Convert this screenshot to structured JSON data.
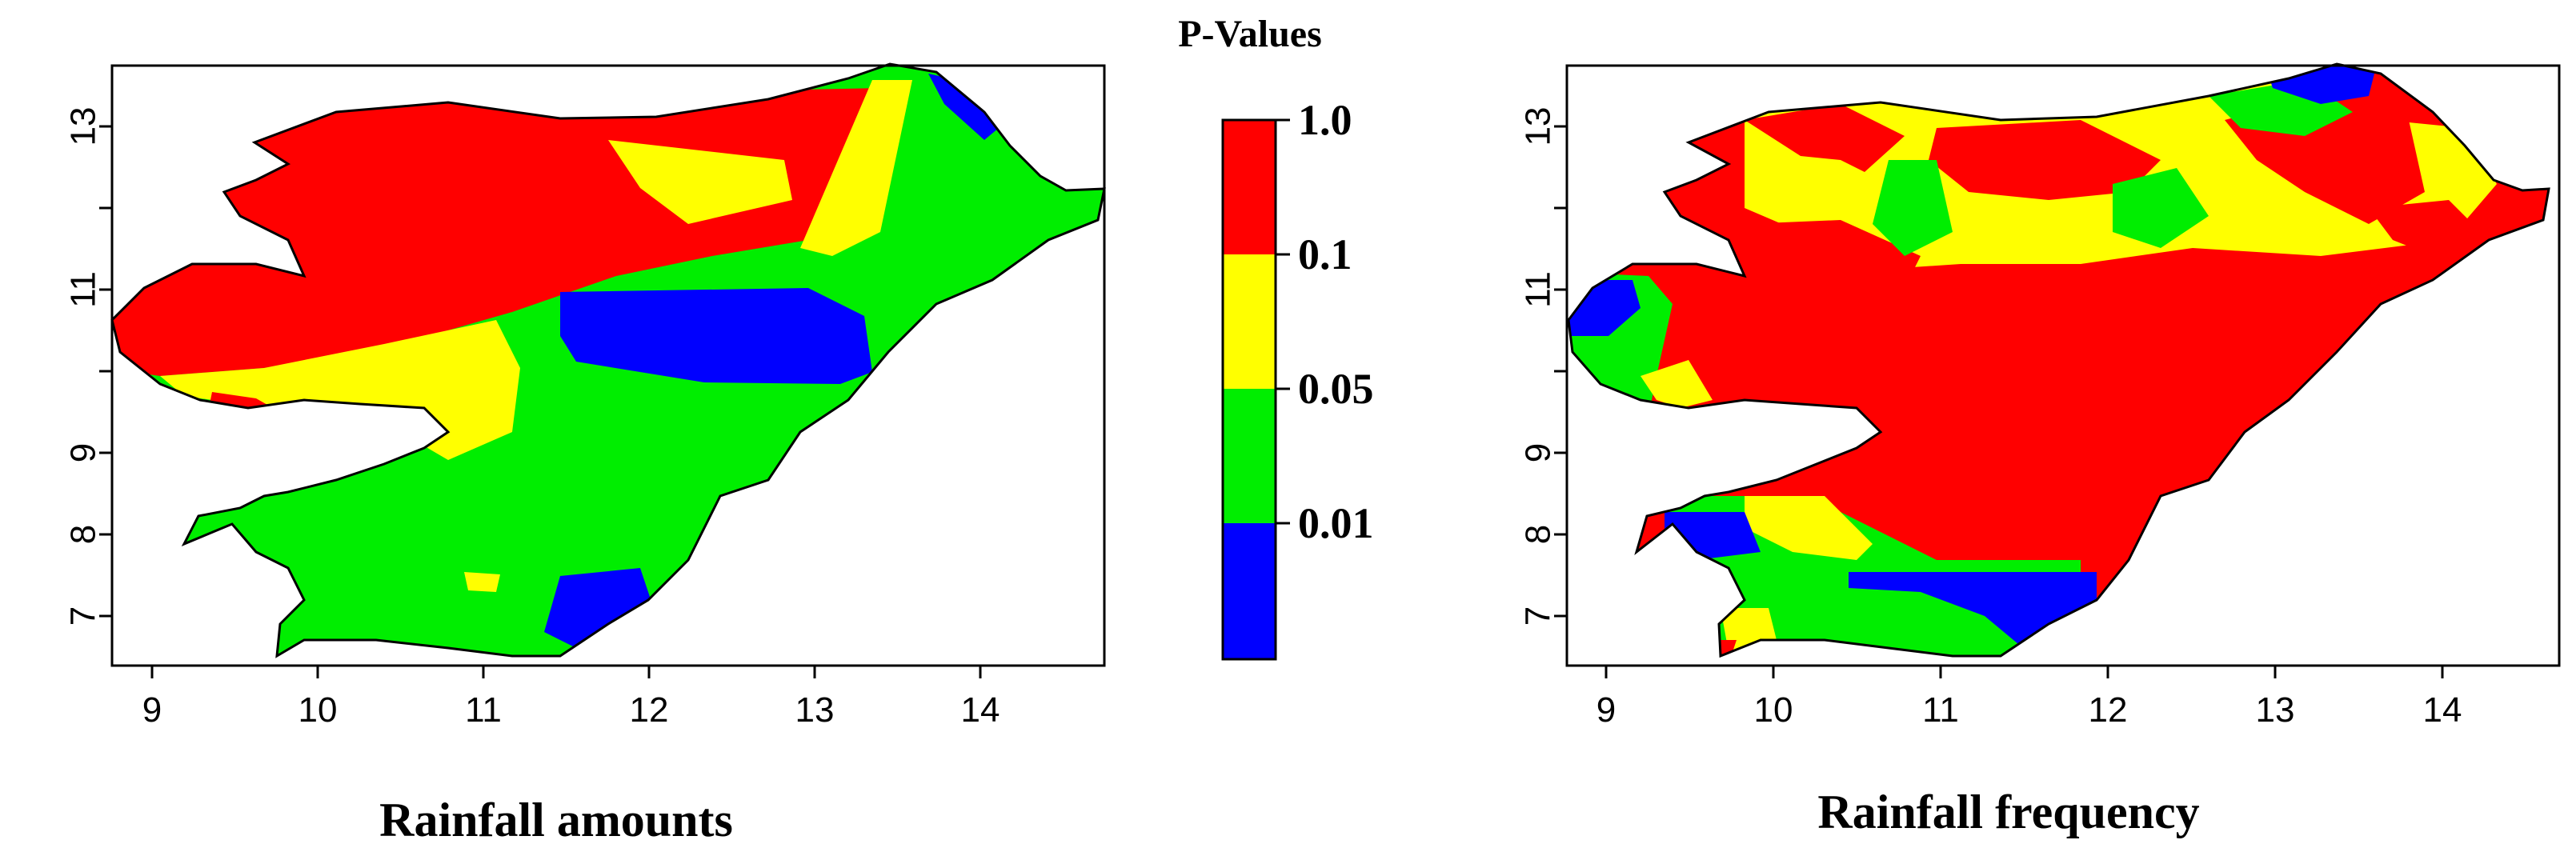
{
  "chart_data": {
    "type": "map",
    "legend": {
      "title": "P-Values",
      "labels": [
        "1.0",
        "0.1",
        "0.05",
        "0.01"
      ],
      "bins": [
        {
          "range": "0.1 - 1.0",
          "color": "#ff0000"
        },
        {
          "range": "0.05 - 0.1",
          "color": "#ffff00"
        },
        {
          "range": "0.01 - 0.05",
          "color": "#00ee00"
        },
        {
          "range": "< 0.01",
          "color": "#0000ff"
        }
      ]
    },
    "panels": [
      {
        "id": "amounts",
        "title": "Rainfall amounts",
        "x_ticks": [
          "9",
          "10",
          "11",
          "12",
          "13",
          "14"
        ],
        "y_ticks": [
          "7",
          "8",
          "9",
          "11",
          "13"
        ]
      },
      {
        "id": "frequency",
        "title": "Rainfall frequency",
        "x_ticks": [
          "9",
          "10",
          "11",
          "12",
          "13",
          "14"
        ],
        "y_ticks": [
          "7",
          "8",
          "9",
          "11",
          "13"
        ]
      }
    ],
    "colors": {
      "red": "#ff0000",
      "yellow": "#ffff00",
      "green": "#00ee00",
      "blue": "#0000ff"
    }
  }
}
